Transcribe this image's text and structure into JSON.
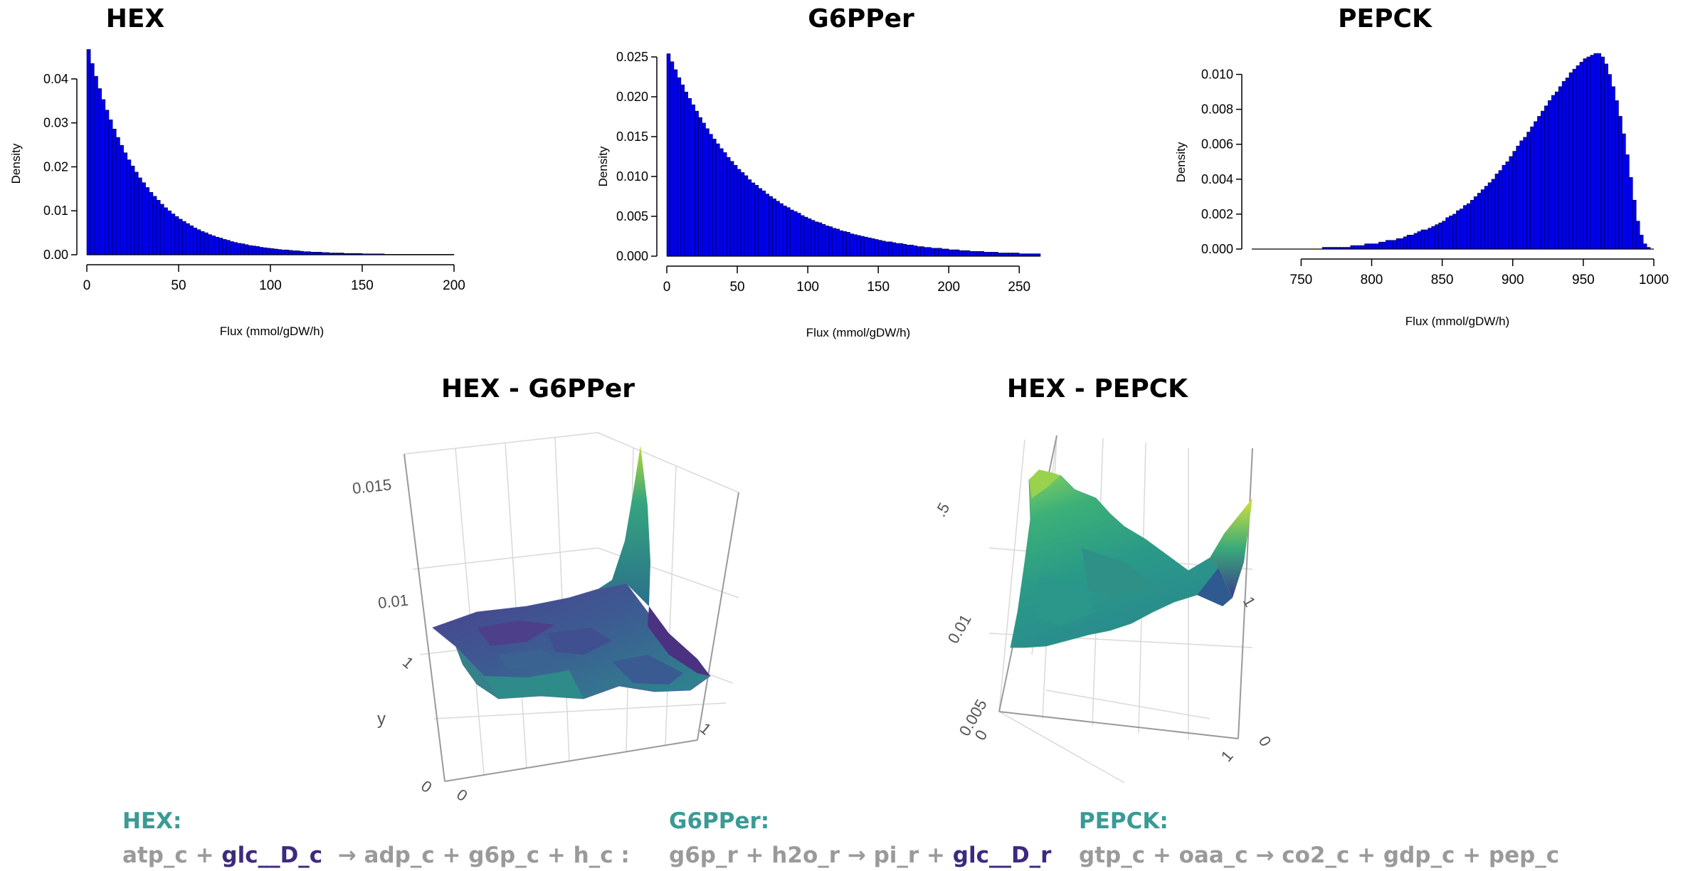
{
  "colors": {
    "bar_fill": "#0000ee",
    "bar_edge": "#00003a",
    "reaction_name": "#3a9a96",
    "equation_text": "#9a9a9a",
    "highlight_metabolite": "#3d2a7e"
  },
  "chart_data": [
    {
      "type": "bar",
      "kind": "histogram",
      "title": "HEX",
      "xlabel": "Flux (mmol/gDW/h)",
      "ylabel": "Density",
      "xlim": [
        0,
        200
      ],
      "ylim": [
        0,
        0.045
      ],
      "xticks": [
        0,
        50,
        100,
        150,
        200
      ],
      "xtick_labels": [
        "0",
        "50",
        "100",
        "150",
        "200"
      ],
      "yticks": [
        0,
        0.01,
        0.02,
        0.03,
        0.04
      ],
      "ytick_labels": [
        "0.00",
        "0.01",
        "0.02",
        "0.03",
        "0.04"
      ],
      "bin_width": 2,
      "x": [
        1,
        3,
        5,
        7,
        9,
        11,
        13,
        15,
        17,
        19,
        21,
        23,
        25,
        27,
        29,
        31,
        33,
        35,
        37,
        39,
        41,
        43,
        45,
        47,
        49,
        51,
        53,
        55,
        57,
        59,
        61,
        63,
        65,
        67,
        69,
        71,
        73,
        75,
        77,
        79,
        81,
        83,
        85,
        87,
        89,
        91,
        93,
        95,
        97,
        99,
        101,
        103,
        105,
        107,
        109,
        111,
        113,
        115,
        117,
        119,
        121,
        123,
        125,
        127,
        129,
        131,
        133,
        135,
        137,
        139,
        141,
        143,
        145,
        147,
        149,
        151,
        153,
        155,
        157,
        159,
        161,
        163,
        165,
        167,
        169,
        171,
        173,
        175,
        177,
        179,
        181,
        183,
        185,
        187,
        189,
        191,
        193,
        195,
        197,
        199
      ],
      "values": [
        0.0467,
        0.0435,
        0.0406,
        0.0378,
        0.0353,
        0.0329,
        0.0307,
        0.0286,
        0.0267,
        0.0249,
        0.0232,
        0.0216,
        0.0202,
        0.0188,
        0.0175,
        0.0164,
        0.0153,
        0.0142,
        0.0133,
        0.0124,
        0.0115,
        0.0107,
        0.01,
        0.0093,
        0.0087,
        0.0081,
        0.0076,
        0.0071,
        0.0066,
        0.0061,
        0.0057,
        0.0053,
        0.005,
        0.0046,
        0.0043,
        0.004,
        0.0038,
        0.0035,
        0.0033,
        0.003,
        0.0028,
        0.0026,
        0.0025,
        0.0023,
        0.0021,
        0.002,
        0.0019,
        0.0017,
        0.0016,
        0.0015,
        0.0014,
        0.0013,
        0.0012,
        0.0011,
        0.0011,
        0.001,
        0.0009,
        0.0009,
        0.0008,
        0.0007,
        0.0007,
        0.0006,
        0.0006,
        0.0006,
        0.0005,
        0.0005,
        0.0004,
        0.0004,
        0.0004,
        0.0004,
        0.0003,
        0.0003,
        0.0003,
        0.0003,
        0.0003,
        0.0002,
        0.0002,
        0.0002,
        0.0002,
        0.0002,
        0.0002,
        0.0001,
        0.0001,
        0.0001,
        0.0001,
        0.0001,
        0.0001,
        0.0001,
        0.0001,
        0.0001,
        0.0001,
        0.0001,
        0.0001,
        0.0001,
        0.0001,
        0.0001,
        0.0001,
        0.0001,
        0.0001,
        0.0001
      ]
    },
    {
      "type": "bar",
      "kind": "histogram",
      "title": "G6PPer",
      "xlabel": "Flux (mmol/gDW/h)",
      "ylabel": "Density",
      "xlim": [
        0,
        265
      ],
      "ylim": [
        0,
        0.025
      ],
      "xticks": [
        0,
        50,
        100,
        150,
        200,
        250
      ],
      "xtick_labels": [
        "0",
        "50",
        "100",
        "150",
        "200",
        "250"
      ],
      "yticks": [
        0,
        0.005,
        0.01,
        0.015,
        0.02,
        0.025
      ],
      "ytick_labels": [
        "0.000",
        "0.005",
        "0.010",
        "0.015",
        "0.020",
        "0.025"
      ],
      "bin_width": 2.5,
      "x": [
        1.25,
        3.75,
        6.25,
        8.75,
        11.25,
        13.75,
        16.25,
        18.75,
        21.25,
        23.75,
        26.25,
        28.75,
        31.25,
        33.75,
        36.25,
        38.75,
        41.25,
        43.75,
        46.25,
        48.75,
        51.25,
        53.75,
        56.25,
        58.75,
        61.25,
        63.75,
        66.25,
        68.75,
        71.25,
        73.75,
        76.25,
        78.75,
        81.25,
        83.75,
        86.25,
        88.75,
        91.25,
        93.75,
        96.25,
        98.75,
        101.25,
        103.75,
        106.25,
        108.75,
        111.25,
        113.75,
        116.25,
        118.75,
        121.25,
        123.75,
        126.25,
        128.75,
        131.25,
        133.75,
        136.25,
        138.75,
        141.25,
        143.75,
        146.25,
        148.75,
        151.25,
        153.75,
        156.25,
        158.75,
        161.25,
        163.75,
        166.25,
        168.75,
        171.25,
        173.75,
        176.25,
        178.75,
        181.25,
        183.75,
        186.25,
        188.75,
        191.25,
        193.75,
        196.25,
        198.75,
        201.25,
        203.75,
        206.25,
        208.75,
        211.25,
        213.75,
        216.25,
        218.75,
        221.25,
        223.75,
        226.25,
        228.75,
        231.25,
        233.75,
        236.25,
        238.75,
        241.25,
        243.75,
        246.25,
        248.75,
        251.25,
        253.75,
        256.25,
        258.75,
        261.25,
        263.75
      ],
      "values": [
        0.0254,
        0.0244,
        0.0234,
        0.0224,
        0.0215,
        0.0206,
        0.0198,
        0.019,
        0.0182,
        0.0174,
        0.0167,
        0.016,
        0.0153,
        0.0147,
        0.0141,
        0.0135,
        0.013,
        0.0124,
        0.0119,
        0.0114,
        0.0109,
        0.0105,
        0.0101,
        0.0096,
        0.0092,
        0.0089,
        0.0085,
        0.0082,
        0.0078,
        0.0075,
        0.0072,
        0.0069,
        0.0066,
        0.0063,
        0.0061,
        0.0058,
        0.0056,
        0.0054,
        0.0051,
        0.0049,
        0.0047,
        0.0045,
        0.0043,
        0.0042,
        0.004,
        0.0038,
        0.0037,
        0.0035,
        0.0034,
        0.0032,
        0.0031,
        0.003,
        0.0028,
        0.0027,
        0.0026,
        0.0025,
        0.0024,
        0.0023,
        0.0022,
        0.0021,
        0.002,
        0.0019,
        0.0018,
        0.0018,
        0.0017,
        0.0016,
        0.0016,
        0.0015,
        0.0014,
        0.0014,
        0.0013,
        0.0012,
        0.0012,
        0.0011,
        0.0011,
        0.001,
        0.001,
        0.001,
        0.0009,
        0.0009,
        0.0008,
        0.0008,
        0.0008,
        0.0007,
        0.0007,
        0.0007,
        0.0006,
        0.0006,
        0.0006,
        0.0006,
        0.0005,
        0.0005,
        0.0005,
        0.0005,
        0.0004,
        0.0004,
        0.0004,
        0.0004,
        0.0004,
        0.0004,
        0.0003,
        0.0003,
        0.0003,
        0.0003,
        0.0003,
        0.0003
      ]
    },
    {
      "type": "bar",
      "kind": "histogram",
      "title": "PEPCK",
      "xlabel": "Flux (mmol/gDW/h)",
      "ylabel": "Density",
      "xlim": [
        715,
        1000
      ],
      "ylim": [
        0,
        0.011
      ],
      "xticks": [
        750,
        800,
        850,
        900,
        950,
        1000
      ],
      "xtick_labels": [
        "750",
        "800",
        "850",
        "900",
        "950",
        "1000"
      ],
      "yticks": [
        0,
        0.002,
        0.004,
        0.006,
        0.008,
        0.01
      ],
      "ytick_labels": [
        "0.000",
        "0.002",
        "0.004",
        "0.006",
        "0.008",
        "0.010"
      ],
      "bin_width": 2.5,
      "x": [
        716.25,
        718.75,
        721.25,
        723.75,
        726.25,
        728.75,
        731.25,
        733.75,
        736.25,
        738.75,
        741.25,
        743.75,
        746.25,
        748.75,
        751.25,
        753.75,
        756.25,
        758.75,
        761.25,
        763.75,
        766.25,
        768.75,
        771.25,
        773.75,
        776.25,
        778.75,
        781.25,
        783.75,
        786.25,
        788.75,
        791.25,
        793.75,
        796.25,
        798.75,
        801.25,
        803.75,
        806.25,
        808.75,
        811.25,
        813.75,
        816.25,
        818.75,
        821.25,
        823.75,
        826.25,
        828.75,
        831.25,
        833.75,
        836.25,
        838.75,
        841.25,
        843.75,
        846.25,
        848.75,
        851.25,
        853.75,
        856.25,
        858.75,
        861.25,
        863.75,
        866.25,
        868.75,
        871.25,
        873.75,
        876.25,
        878.75,
        881.25,
        883.75,
        886.25,
        888.75,
        891.25,
        893.75,
        896.25,
        898.75,
        901.25,
        903.75,
        906.25,
        908.75,
        911.25,
        913.75,
        916.25,
        918.75,
        921.25,
        923.75,
        926.25,
        928.75,
        931.25,
        933.75,
        936.25,
        938.75,
        941.25,
        943.75,
        946.25,
        948.75,
        951.25,
        953.75,
        956.25,
        958.75,
        961.25,
        963.75,
        966.25,
        968.75,
        971.25,
        973.75,
        976.25,
        978.75,
        981.25,
        983.75,
        986.25,
        988.75,
        991.25,
        993.75,
        996.25,
        998.75
      ],
      "values": [
        0.0,
        0.0,
        0.0,
        0.0,
        0.0,
        0.0,
        0.0,
        0.0,
        0.0,
        0.0,
        0.0,
        0.0,
        0.0,
        0.0,
        0.0,
        0.0,
        0.0,
        0.0,
        0.0,
        0.0,
        0.0001,
        0.0001,
        0.0001,
        0.0001,
        0.0001,
        0.0001,
        0.0001,
        0.0001,
        0.0002,
        0.0002,
        0.0002,
        0.0002,
        0.0003,
        0.0003,
        0.0003,
        0.0003,
        0.0004,
        0.0004,
        0.0005,
        0.0005,
        0.0005,
        0.0006,
        0.0006,
        0.0007,
        0.0008,
        0.0008,
        0.0009,
        0.001,
        0.0011,
        0.0011,
        0.0012,
        0.0013,
        0.0014,
        0.0015,
        0.0016,
        0.0018,
        0.0019,
        0.002,
        0.0022,
        0.0023,
        0.0025,
        0.0026,
        0.0028,
        0.003,
        0.0032,
        0.0034,
        0.0036,
        0.0038,
        0.004,
        0.0043,
        0.0045,
        0.0048,
        0.005,
        0.0053,
        0.0056,
        0.0059,
        0.0062,
        0.0064,
        0.0067,
        0.007,
        0.0073,
        0.0076,
        0.0079,
        0.0082,
        0.0085,
        0.0088,
        0.009,
        0.0093,
        0.0096,
        0.0098,
        0.0101,
        0.0103,
        0.0105,
        0.0107,
        0.0109,
        0.011,
        0.0111,
        0.0112,
        0.0112,
        0.011,
        0.0106,
        0.01,
        0.0093,
        0.0085,
        0.0076,
        0.0066,
        0.0054,
        0.0041,
        0.0028,
        0.0016,
        0.0008,
        0.0003,
        0.0001,
        0.0
      ]
    },
    {
      "type": "heatmap",
      "kind": "3d-surface",
      "title": "HEX - G6PPer",
      "axis_labels": [
        {
          "id": "z-hi",
          "text": "0.015"
        },
        {
          "id": "z-lo",
          "text": "0.01"
        },
        {
          "id": "y-one",
          "text": "1"
        },
        {
          "id": "y-axis",
          "text": "y"
        },
        {
          "id": "origin-a",
          "text": "0"
        },
        {
          "id": "origin-b",
          "text": "0"
        },
        {
          "id": "x-one",
          "text": "1"
        }
      ]
    },
    {
      "type": "heatmap",
      "kind": "3d-surface",
      "title": "HEX - PEPCK",
      "axis_labels": [
        {
          "id": "z-hi",
          "text": ".5"
        },
        {
          "id": "z-mid",
          "text": "0.01"
        },
        {
          "id": "z-lo",
          "text": "0.005"
        },
        {
          "id": "origin-a",
          "text": "0"
        },
        {
          "id": "right-one",
          "text": "1"
        },
        {
          "id": "right-zero",
          "text": "0"
        },
        {
          "id": "front-one",
          "text": "1"
        }
      ]
    }
  ],
  "reactions": [
    {
      "name": "HEX:",
      "parts": [
        {
          "text": "atp_c + ",
          "highlight": false
        },
        {
          "text": "glc__D_c",
          "highlight": true
        },
        {
          "text": "  → adp_c + g6p_c + h_c :",
          "highlight": false
        }
      ]
    },
    {
      "name": "G6PPer:",
      "parts": [
        {
          "text": "g6p_r + h2o_r → pi_r + ",
          "highlight": false
        },
        {
          "text": "glc__D_r",
          "highlight": true
        }
      ]
    },
    {
      "name": "PEPCK:",
      "parts": [
        {
          "text": "gtp_c + oaa_c → co2_c + gdp_c + pep_c",
          "highlight": false
        }
      ]
    }
  ]
}
